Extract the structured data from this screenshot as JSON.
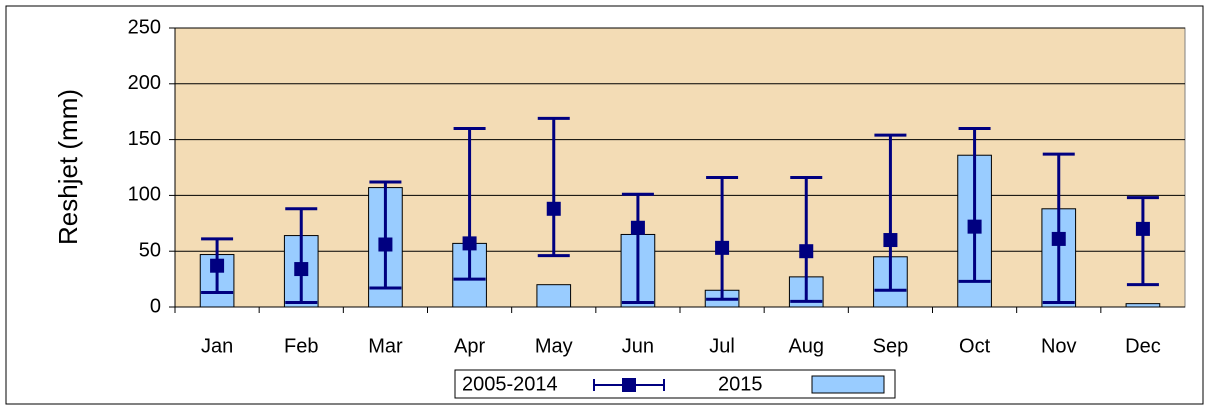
{
  "chart_data": {
    "type": "bar_errorbar",
    "y_label": "Reshjet (mm)",
    "categories": [
      "Jan",
      "Feb",
      "Mar",
      "Apr",
      "May",
      "Jun",
      "Jul",
      "Aug",
      "Sep",
      "Oct",
      "Nov",
      "Dec"
    ],
    "series": [
      {
        "name": "2005-2014",
        "type": "errorbar",
        "color": "#000080",
        "values": [
          37,
          34,
          56,
          57,
          88,
          71,
          53,
          50,
          60,
          72,
          61,
          70
        ],
        "min": [
          13,
          4,
          17,
          25,
          46,
          4,
          7,
          5,
          15,
          23,
          4,
          20
        ],
        "max": [
          61,
          88,
          112,
          160,
          169,
          101,
          116,
          116,
          154,
          160,
          137,
          98
        ]
      },
      {
        "name": "2015",
        "type": "bar",
        "color": "#99ccff",
        "values": [
          47,
          64,
          107,
          57,
          20,
          65,
          15,
          27,
          45,
          136,
          88,
          3
        ]
      }
    ],
    "ylim": [
      0,
      250
    ],
    "yticks": [
      0,
      50,
      100,
      150,
      200,
      250
    ],
    "grid": true,
    "plot_background": "#f3dcb5"
  }
}
